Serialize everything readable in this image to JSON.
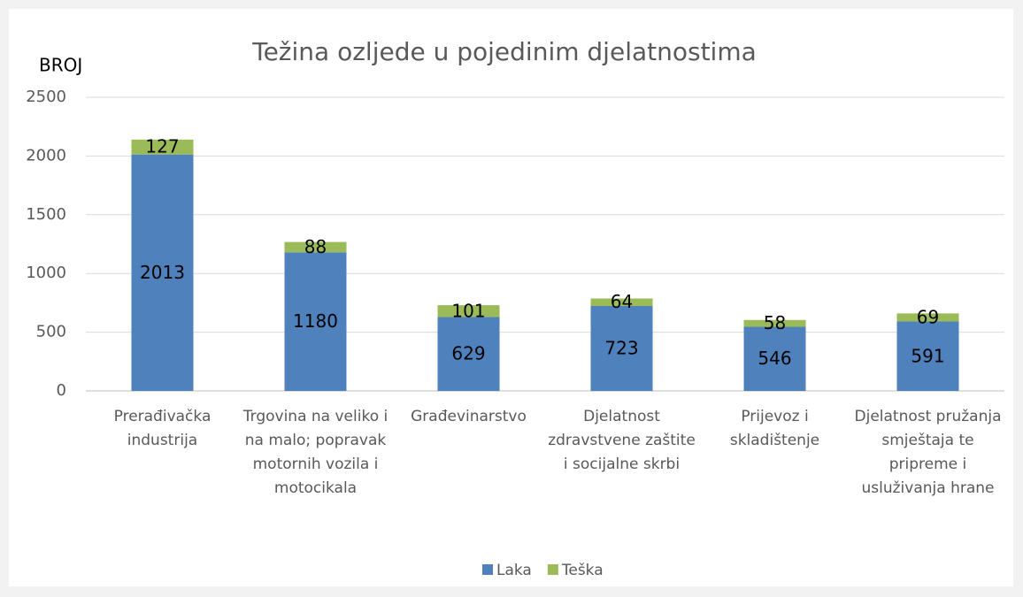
{
  "chart_data": {
    "type": "stacked_bar",
    "title": "Težina ozljede u pojedinim djelatnostima",
    "y_label": "BROJ",
    "categories": [
      "Prerađivačka industrija",
      "Trgovina na veliko i na malo; popravak motornih vozila i motocikala",
      "Građevinarstvo",
      "Djelatnost zdravstvene zaštite i socijalne skrbi",
      "Prijevoz i skladištenje",
      "Djelatnost pružanja smještaja te pripreme i usluživanja hrane"
    ],
    "series": [
      {
        "name": "Laka",
        "color": "#4f81bd",
        "values": [
          2013,
          1180,
          629,
          723,
          546,
          591
        ]
      },
      {
        "name": "Teška",
        "color": "#9bbb59",
        "values": [
          127,
          88,
          101,
          64,
          58,
          69
        ]
      }
    ],
    "ylim": [
      0,
      2500
    ],
    "yticks": [
      0,
      500,
      1000,
      1500,
      2000,
      2500
    ],
    "grid": true,
    "legend": "bottom"
  }
}
